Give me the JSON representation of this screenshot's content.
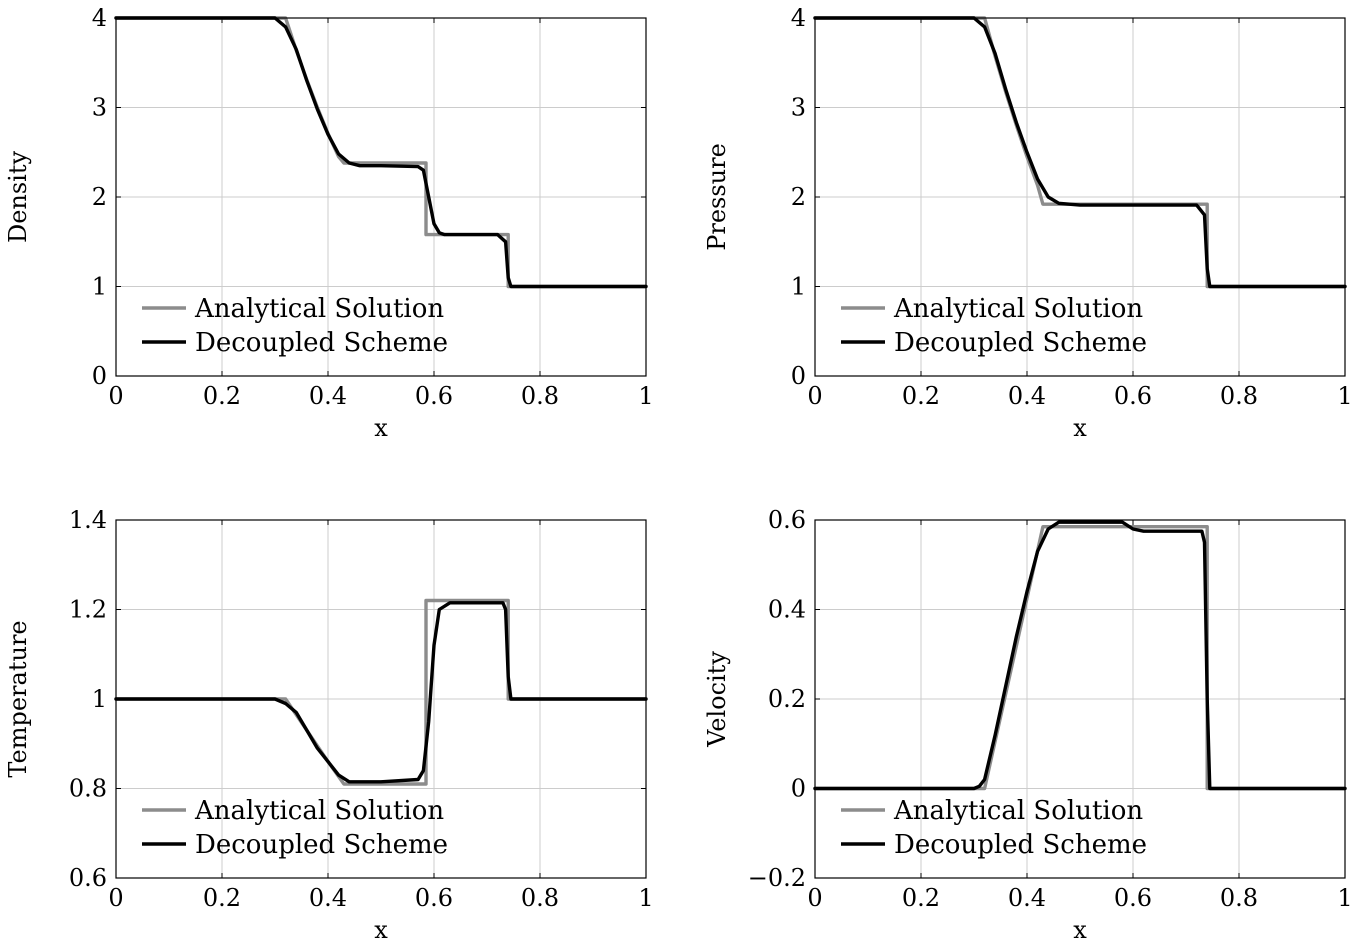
{
  "chart_data": [
    {
      "type": "line",
      "xlabel": "x",
      "ylabel": "Density",
      "xlim": [
        0,
        1
      ],
      "ylim": [
        0,
        4
      ],
      "xticks": [
        "0",
        "0.2",
        "0.4",
        "0.6",
        "0.8",
        "1"
      ],
      "yticks": [
        "0",
        "1",
        "2",
        "3",
        "4"
      ],
      "grid": true,
      "legend_position": "bottom-left",
      "series": [
        {
          "name": "Analytical Solution",
          "color": "#8c8c8c",
          "x": [
            0,
            0.32,
            0.34,
            0.36,
            0.38,
            0.4,
            0.42,
            0.43,
            0.585,
            0.585,
            0.74,
            0.74,
            1
          ],
          "y": [
            4,
            4,
            3.64,
            3.31,
            3.0,
            2.71,
            2.45,
            2.38,
            2.38,
            1.58,
            1.58,
            1.0,
            1.0
          ]
        },
        {
          "name": "Decoupled Scheme",
          "color": "#000000",
          "x": [
            0,
            0.3,
            0.32,
            0.34,
            0.36,
            0.38,
            0.4,
            0.42,
            0.44,
            0.46,
            0.5,
            0.57,
            0.58,
            0.59,
            0.6,
            0.61,
            0.62,
            0.65,
            0.72,
            0.735,
            0.74,
            0.745,
            1
          ],
          "y": [
            4,
            4,
            3.9,
            3.65,
            3.3,
            2.98,
            2.7,
            2.48,
            2.38,
            2.35,
            2.35,
            2.34,
            2.3,
            2.0,
            1.7,
            1.6,
            1.58,
            1.58,
            1.58,
            1.5,
            1.1,
            1.0,
            1.0
          ]
        }
      ]
    },
    {
      "type": "line",
      "xlabel": "x",
      "ylabel": "Pressure",
      "xlim": [
        0,
        1
      ],
      "ylim": [
        0,
        4
      ],
      "xticks": [
        "0",
        "0.2",
        "0.4",
        "0.6",
        "0.8",
        "1"
      ],
      "yticks": [
        "0",
        "1",
        "2",
        "3",
        "4"
      ],
      "grid": true,
      "legend_position": "bottom-left",
      "series": [
        {
          "name": "Analytical Solution",
          "color": "#8c8c8c",
          "x": [
            0,
            0.32,
            0.34,
            0.36,
            0.38,
            0.4,
            0.42,
            0.43,
            0.74,
            0.74,
            1
          ],
          "y": [
            4,
            4,
            3.57,
            3.17,
            2.8,
            2.45,
            2.13,
            1.92,
            1.92,
            1.0,
            1.0
          ]
        },
        {
          "name": "Decoupled Scheme",
          "color": "#000000",
          "x": [
            0,
            0.3,
            0.32,
            0.34,
            0.36,
            0.38,
            0.4,
            0.42,
            0.44,
            0.46,
            0.5,
            0.72,
            0.735,
            0.74,
            0.745,
            1
          ],
          "y": [
            4,
            4,
            3.9,
            3.6,
            3.2,
            2.83,
            2.5,
            2.2,
            2.0,
            1.93,
            1.91,
            1.91,
            1.8,
            1.2,
            1.0,
            1.0
          ]
        }
      ]
    },
    {
      "type": "line",
      "xlabel": "x",
      "ylabel": "Temperature",
      "xlim": [
        0,
        1
      ],
      "ylim": [
        0.6,
        1.4
      ],
      "xticks": [
        "0",
        "0.2",
        "0.4",
        "0.6",
        "0.8",
        "1"
      ],
      "yticks": [
        "0.6",
        "0.8",
        "1",
        "1.2",
        "1.4"
      ],
      "grid": true,
      "legend_position": "bottom-left",
      "series": [
        {
          "name": "Analytical Solution",
          "color": "#8c8c8c",
          "x": [
            0,
            0.32,
            0.36,
            0.4,
            0.43,
            0.585,
            0.585,
            0.74,
            0.74,
            1
          ],
          "y": [
            1.0,
            1.0,
            0.93,
            0.86,
            0.81,
            0.81,
            1.22,
            1.22,
            1.0,
            1.0
          ]
        },
        {
          "name": "Decoupled Scheme",
          "color": "#000000",
          "x": [
            0,
            0.3,
            0.32,
            0.34,
            0.36,
            0.38,
            0.4,
            0.42,
            0.44,
            0.46,
            0.5,
            0.57,
            0.58,
            0.59,
            0.6,
            0.61,
            0.63,
            0.7,
            0.73,
            0.735,
            0.74,
            0.745,
            1
          ],
          "y": [
            1.0,
            1.0,
            0.99,
            0.97,
            0.93,
            0.89,
            0.86,
            0.83,
            0.815,
            0.815,
            0.815,
            0.82,
            0.84,
            0.95,
            1.12,
            1.2,
            1.215,
            1.215,
            1.215,
            1.2,
            1.05,
            1.0,
            1.0
          ]
        }
      ]
    },
    {
      "type": "line",
      "xlabel": "x",
      "ylabel": "Velocity",
      "xlim": [
        0,
        1
      ],
      "ylim": [
        -0.2,
        0.6
      ],
      "xticks": [
        "0",
        "0.2",
        "0.4",
        "0.6",
        "0.8",
        "1"
      ],
      "yticks": [
        "−0.2",
        "0",
        "0.2",
        "0.4",
        "0.6"
      ],
      "grid": true,
      "legend_position": "bottom-left",
      "series": [
        {
          "name": "Analytical Solution",
          "color": "#8c8c8c",
          "x": [
            0,
            0.32,
            0.43,
            0.74,
            0.74,
            1
          ],
          "y": [
            0,
            0,
            0.585,
            0.585,
            0,
            0
          ]
        },
        {
          "name": "Decoupled Scheme",
          "color": "#000000",
          "x": [
            0,
            0.3,
            0.31,
            0.32,
            0.34,
            0.36,
            0.38,
            0.4,
            0.42,
            0.44,
            0.46,
            0.5,
            0.58,
            0.6,
            0.62,
            0.7,
            0.73,
            0.735,
            0.74,
            0.745,
            1
          ],
          "y": [
            0,
            0,
            0.005,
            0.02,
            0.12,
            0.23,
            0.34,
            0.44,
            0.53,
            0.58,
            0.595,
            0.595,
            0.595,
            0.58,
            0.575,
            0.575,
            0.575,
            0.55,
            0.2,
            0,
            0
          ]
        }
      ]
    }
  ]
}
